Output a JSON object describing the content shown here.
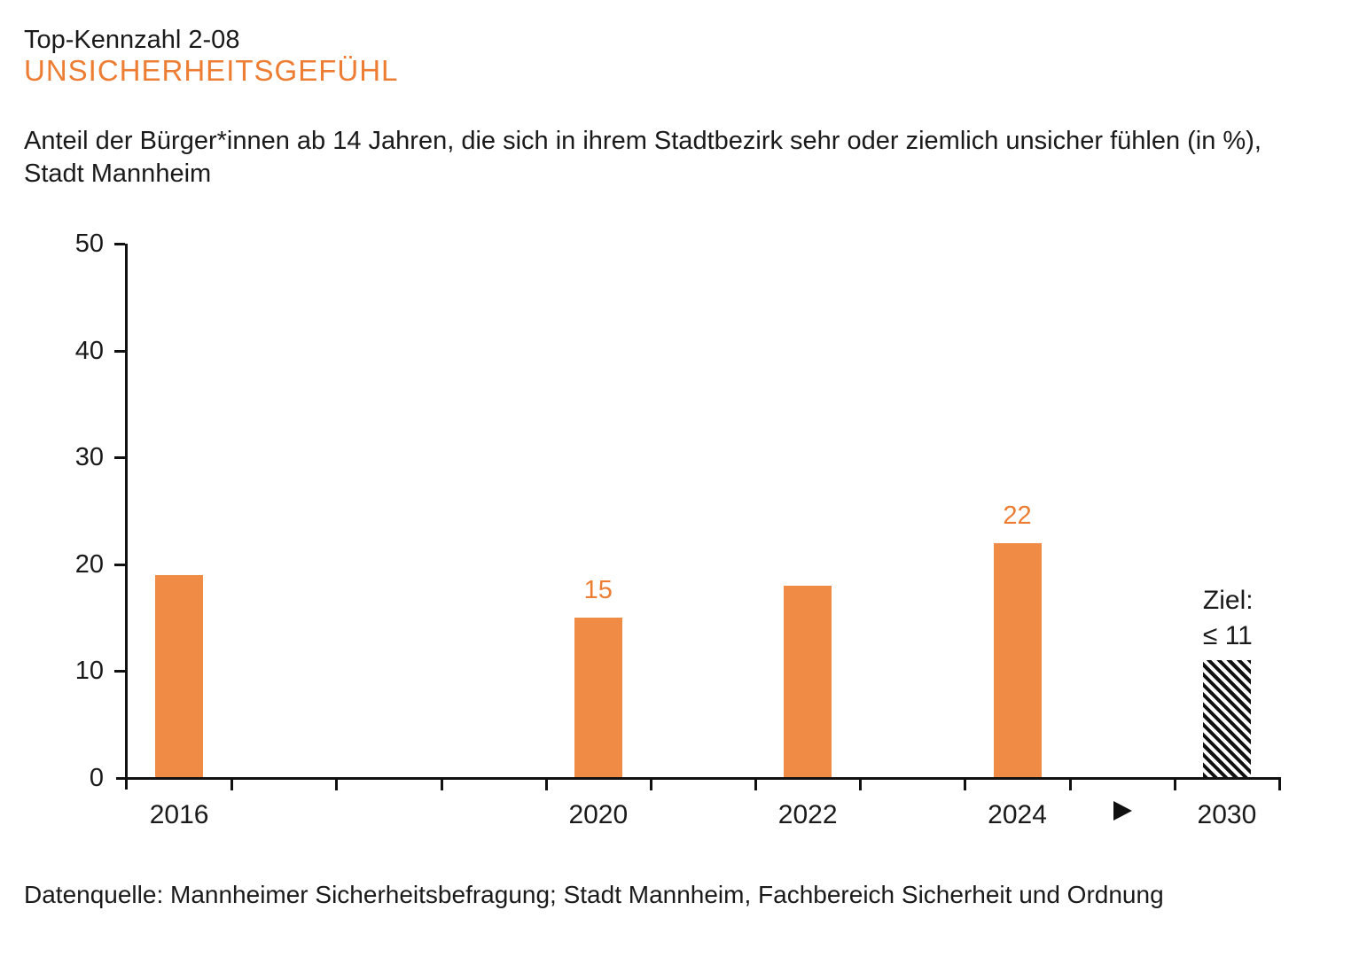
{
  "header": {
    "kennzahl": "Top-Kennzahl 2-08",
    "title": "UNSICHERHEITSGEFÜHL",
    "subtitle_line1": "Anteil der Bürger*innen ab 14 Jahren, die sich in ihrem Stadtbezirk sehr oder ziemlich unsicher fühlen (in %),",
    "subtitle_line2": "Stadt Mannheim"
  },
  "chart_data": {
    "type": "bar",
    "title": "Unsicherheitsgefühl (in %), Stadt Mannheim",
    "categories": [
      "2016",
      "2020",
      "2022",
      "2024",
      "2030"
    ],
    "values": [
      19,
      15,
      18,
      22,
      11
    ],
    "value_labels": [
      "",
      "15",
      "",
      "22",
      ""
    ],
    "bar_styles": [
      "solid",
      "solid",
      "solid",
      "solid",
      "hatched"
    ],
    "target": {
      "category": "2030",
      "value": 11,
      "label_line1": "Ziel:",
      "label_line2": "≤ 11"
    },
    "xlabel": "",
    "ylabel": "",
    "ylim": [
      0,
      50
    ],
    "yticks": [
      0,
      10,
      20,
      30,
      40,
      50
    ],
    "grid": false,
    "legend": "none",
    "axis_break": {
      "after_category": "2024",
      "marker": "▶"
    },
    "layout_hints": {
      "n_slots": 11,
      "slot_indices": [
        0,
        4,
        6,
        8,
        10
      ],
      "break_marker_slot": 9
    },
    "colors": {
      "bar": "#f08b45",
      "accent": "#ed7d33",
      "text": "#1a1a1a",
      "axis": "#111111",
      "background": "#ffffff"
    }
  },
  "footer": {
    "source": "Datenquelle: Mannheimer Sicherheitsbefragung; Stadt Mannheim, Fachbereich Sicherheit und Ordnung"
  }
}
